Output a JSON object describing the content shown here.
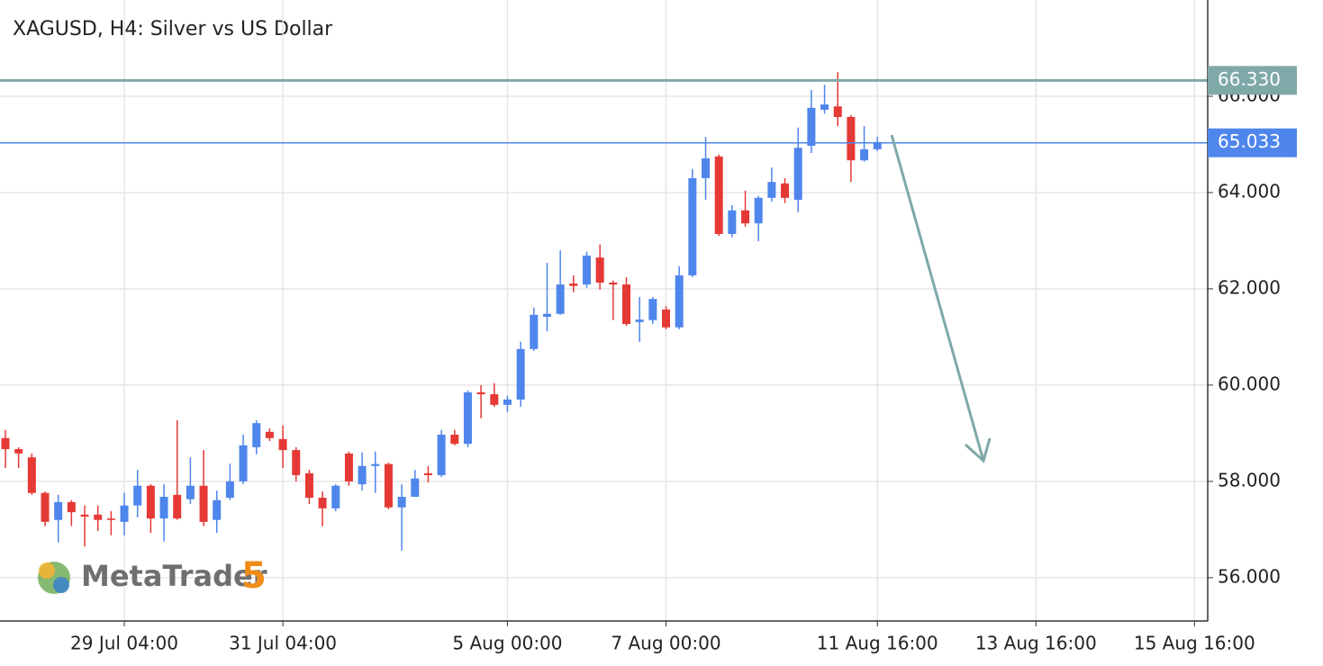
{
  "chart_data": {
    "type": "candlestick",
    "title": "XAGUSD, H4: Silver vs US Dollar",
    "watermark": {
      "name": "MetaTrader",
      "number": "5"
    },
    "categories": [
      null,
      null,
      null,
      null,
      null,
      null,
      null,
      null,
      null,
      "29 Jul 04:00",
      null,
      null,
      null,
      null,
      null,
      null,
      null,
      null,
      null,
      null,
      null,
      "31 Jul 04:00",
      null,
      null,
      null,
      null,
      null,
      null,
      null,
      null,
      null,
      null,
      null,
      null,
      null,
      null,
      null,
      null,
      "5 Aug 00:00",
      null,
      null,
      null,
      null,
      null,
      null,
      null,
      null,
      null,
      null,
      null,
      "7 Aug 00:00",
      null,
      null,
      null,
      null,
      null,
      null,
      null,
      null,
      null,
      null,
      null,
      null,
      null,
      null,
      null,
      "11 Aug 16:00",
      null,
      null,
      null,
      null,
      null,
      null,
      null,
      null,
      null,
      null,
      null,
      "13 Aug 16:00",
      null,
      null,
      null,
      null,
      null,
      null,
      null,
      null,
      null,
      null,
      null,
      "15 Aug 16:00"
    ],
    "open": [
      58.9,
      58.67,
      58.5,
      57.76,
      57.2,
      57.57,
      57.31,
      57.31,
      57.23,
      57.16,
      57.5,
      57.91,
      57.23,
      57.72,
      57.63,
      57.91,
      57.2,
      57.66,
      58.0,
      58.71,
      59.03,
      58.88,
      58.65,
      58.17,
      57.66,
      57.44,
      58.58,
      57.94,
      58.32,
      58.36,
      57.46,
      57.68,
      58.17,
      58.13,
      58.97,
      58.78,
      59.85,
      59.81,
      59.59,
      59.7,
      60.75,
      61.42,
      61.48,
      62.11,
      62.09,
      62.65,
      62.13,
      62.09,
      61.31,
      61.35,
      61.57,
      61.2,
      62.28,
      64.3,
      64.75,
      63.14,
      63.63,
      63.36,
      63.89,
      64.19,
      63.85,
      64.97,
      65.72,
      65.79,
      65.57,
      64.67,
      64.9,
      null,
      null,
      null,
      null,
      null,
      null,
      null,
      null,
      null,
      null,
      null,
      null,
      null,
      null,
      null,
      null,
      null,
      null,
      null,
      null,
      null,
      null,
      null,
      null
    ],
    "high": [
      59.07,
      58.71,
      58.58,
      57.79,
      57.72,
      57.61,
      57.5,
      57.5,
      57.38,
      57.76,
      58.24,
      57.94,
      57.94,
      59.27,
      58.5,
      58.65,
      57.81,
      58.37,
      58.97,
      59.27,
      59.1,
      59.16,
      58.71,
      58.24,
      57.79,
      57.94,
      58.62,
      58.6,
      58.62,
      58.39,
      57.94,
      58.24,
      58.32,
      59.07,
      59.07,
      59.89,
      60.0,
      60.04,
      59.78,
      60.9,
      61.61,
      62.54,
      62.8,
      62.28,
      62.77,
      62.92,
      62.17,
      62.24,
      61.83,
      61.83,
      61.64,
      62.47,
      64.49,
      65.16,
      64.79,
      63.74,
      64.04,
      63.93,
      64.52,
      64.3,
      65.35,
      66.13,
      66.24,
      66.5,
      65.61,
      65.38,
      65.16,
      null,
      null,
      null,
      null,
      null,
      null,
      null,
      null,
      null,
      null,
      null,
      null,
      null,
      null,
      null,
      null,
      null,
      null,
      null,
      null,
      null,
      null,
      null,
      null
    ],
    "low": [
      58.28,
      58.28,
      57.72,
      57.07,
      56.73,
      57.07,
      56.65,
      56.97,
      56.88,
      56.88,
      57.25,
      56.93,
      56.75,
      57.2,
      57.53,
      57.07,
      56.93,
      57.61,
      57.94,
      58.56,
      58.84,
      58.28,
      58.0,
      57.53,
      57.07,
      57.38,
      57.91,
      57.81,
      57.76,
      57.42,
      56.56,
      57.68,
      57.98,
      58.09,
      58.75,
      58.71,
      59.31,
      59.55,
      59.44,
      59.55,
      60.71,
      61.12,
      61.46,
      61.93,
      62.02,
      61.98,
      61.35,
      61.23,
      60.9,
      61.27,
      61.16,
      61.16,
      62.24,
      63.85,
      63.1,
      63.07,
      63.29,
      62.99,
      63.81,
      63.78,
      63.59,
      64.82,
      65.64,
      65.38,
      64.22,
      64.64,
      64.86,
      null,
      null,
      null,
      null,
      null,
      null,
      null,
      null,
      null,
      null,
      null,
      null,
      null,
      null,
      null,
      null,
      null,
      null,
      null,
      null,
      null,
      null,
      null,
      null
    ],
    "close": [
      58.67,
      58.58,
      57.76,
      57.16,
      57.57,
      57.36,
      57.27,
      57.2,
      57.2,
      57.5,
      57.91,
      57.23,
      57.68,
      57.23,
      57.91,
      57.16,
      57.61,
      58.0,
      58.75,
      59.21,
      58.9,
      58.65,
      58.13,
      57.66,
      57.44,
      57.91,
      58.0,
      58.32,
      58.36,
      57.46,
      57.68,
      58.06,
      58.13,
      58.97,
      58.78,
      59.85,
      59.81,
      59.59,
      59.7,
      60.75,
      61.46,
      61.48,
      62.09,
      62.06,
      62.69,
      62.13,
      62.09,
      61.27,
      61.36,
      61.79,
      61.2,
      62.28,
      64.3,
      64.71,
      63.14,
      63.63,
      63.36,
      63.89,
      64.22,
      63.89,
      64.93,
      65.76,
      65.83,
      65.57,
      64.67,
      64.9,
      65.05,
      null,
      null,
      null,
      null,
      null,
      null,
      null,
      null,
      null,
      null,
      null,
      null,
      null,
      null,
      null,
      null,
      null,
      null,
      null,
      null,
      null,
      null,
      null,
      null
    ],
    "up_color": "#4f86ec",
    "down_color": "#e53935",
    "ylim": [
      55.1,
      68.0
    ],
    "yticks": [
      {
        "value": 56,
        "label": "56.000"
      },
      {
        "value": 58,
        "label": "58.000"
      },
      {
        "value": 60,
        "label": "60.000"
      },
      {
        "value": 62,
        "label": "62.000"
      },
      {
        "value": 64,
        "label": "64.000"
      },
      {
        "value": 66,
        "label": "66.000"
      }
    ],
    "price_lines": [
      {
        "value": 66.33,
        "label": "66.330",
        "color": "#7fa8a9"
      },
      {
        "value": 65.033,
        "label": "65.033",
        "color": "#4f86ec"
      }
    ],
    "grid": true
  }
}
